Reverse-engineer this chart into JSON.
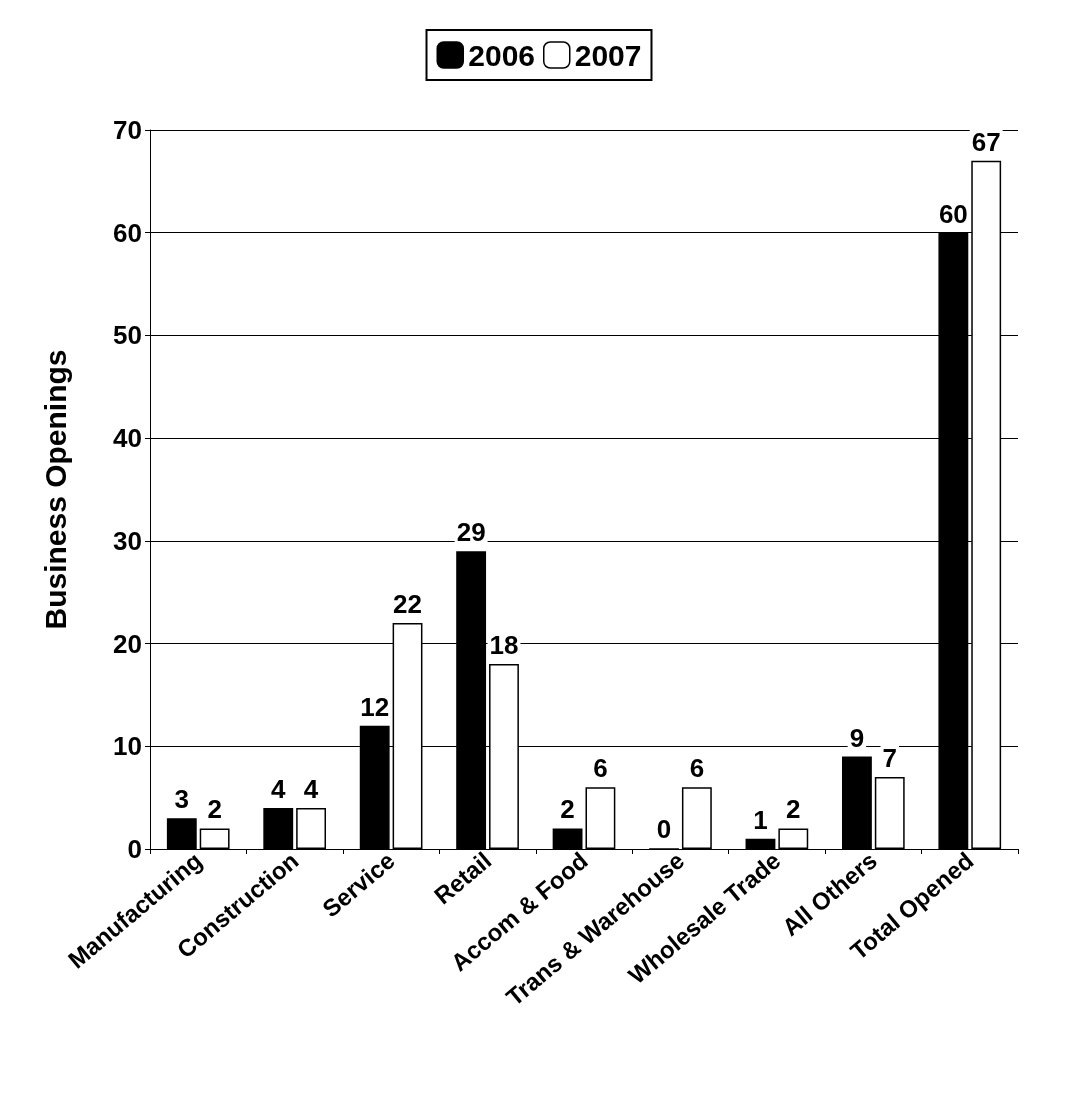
{
  "chart_data": {
    "type": "bar",
    "ylabel": "Business Openings",
    "categories": [
      "Manufacturing",
      "Construction",
      "Service",
      "Retail",
      "Accom & Food",
      "Trans & Warehouse",
      "Wholesale Trade",
      "All Others",
      "Total Opened"
    ],
    "series": [
      {
        "name": "2006",
        "color": "#000000",
        "values": [
          3,
          4,
          12,
          29,
          2,
          0,
          1,
          9,
          60
        ]
      },
      {
        "name": "2007",
        "color": "#ffffff",
        "values": [
          2,
          4,
          22,
          18,
          6,
          6,
          2,
          7,
          67
        ]
      }
    ],
    "ylim": [
      0,
      70
    ],
    "yticks": [
      0,
      10,
      20,
      30,
      40,
      50,
      60,
      70
    ],
    "grid": "y",
    "legend": "top",
    "data_labels": true
  }
}
